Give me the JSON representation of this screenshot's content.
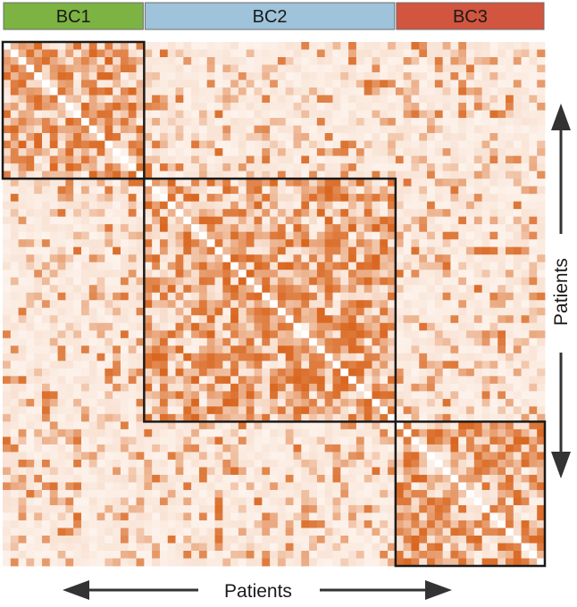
{
  "chart_data": {
    "type": "heatmap",
    "title": "",
    "xlabel": "Patients",
    "ylabel": "Patients",
    "legend": "none",
    "grid": false,
    "colors": {
      "low": "#fdf3ec",
      "high": "#d9661f",
      "diagonal": "#ffffff",
      "cluster_border": "#1a1a1a"
    },
    "clusters": [
      {
        "name": "BC1",
        "size": 18,
        "color": "#7cb342"
      },
      {
        "name": "BC2",
        "size": 32,
        "color": "#9ec3da"
      },
      {
        "name": "BC3",
        "size": 19,
        "color": "#d2553f"
      }
    ],
    "similarity_levels": {
      "within_cluster_mean": 0.42,
      "between_cluster_mean": 0.12,
      "scale": [
        0,
        1
      ]
    }
  }
}
